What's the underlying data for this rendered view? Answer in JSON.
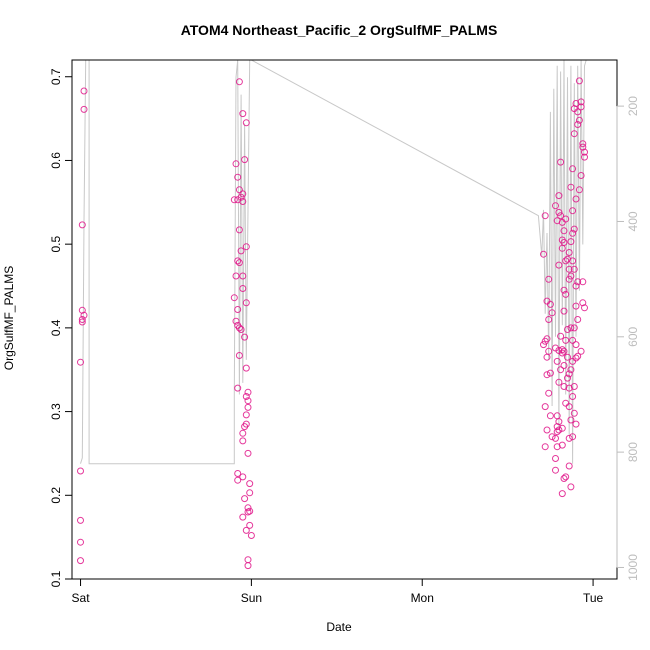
{
  "chart_data": {
    "type": "scatter",
    "title": "ATOM4 Northeast_Pacific_2 OrgSulfMF_PALMS",
    "xlabel": "Date",
    "ylabel": "OrgSulfMF_PALMS",
    "x_ticks": [
      "Sat",
      "Sun",
      "Mon",
      "Tue"
    ],
    "x_range_days": [
      -0.05,
      3.14
    ],
    "y_ticks": [
      0.1,
      0.2,
      0.3,
      0.4,
      0.5,
      0.6,
      0.7
    ],
    "ylim": [
      0.1,
      0.72
    ],
    "y2_ticks": [
      200,
      400,
      600,
      800,
      1000
    ],
    "y2lim": [
      1020,
      120
    ],
    "point_color": "#e0158a",
    "line_color": "#c8c8c8",
    "grid": false,
    "series": [
      {
        "values": [
          [
            0.02,
            0.683
          ],
          [
            0.02,
            0.661
          ],
          [
            0.01,
            0.523
          ],
          [
            0.01,
            0.421
          ],
          [
            0.02,
            0.415
          ],
          [
            0.01,
            0.41
          ],
          [
            0.01,
            0.407
          ],
          [
            0.0,
            0.359
          ],
          [
            0.0,
            0.229
          ],
          [
            0.0,
            0.17
          ],
          [
            0.0,
            0.144
          ],
          [
            0.0,
            0.122
          ],
          [
            0.93,
            0.694
          ],
          [
            0.95,
            0.656
          ],
          [
            0.97,
            0.645
          ],
          [
            0.96,
            0.601
          ],
          [
            0.91,
            0.596
          ],
          [
            0.92,
            0.58
          ],
          [
            0.93,
            0.565
          ],
          [
            0.95,
            0.56
          ],
          [
            0.9,
            0.553
          ],
          [
            0.92,
            0.553
          ],
          [
            0.94,
            0.556
          ],
          [
            0.95,
            0.551
          ],
          [
            0.93,
            0.517
          ],
          [
            0.97,
            0.497
          ],
          [
            0.94,
            0.492
          ],
          [
            0.92,
            0.48
          ],
          [
            0.93,
            0.478
          ],
          [
            0.95,
            0.462
          ],
          [
            0.91,
            0.462
          ],
          [
            0.95,
            0.447
          ],
          [
            0.9,
            0.436
          ],
          [
            0.97,
            0.43
          ],
          [
            0.92,
            0.422
          ],
          [
            0.91,
            0.408
          ],
          [
            0.93,
            0.4
          ],
          [
            0.92,
            0.403
          ],
          [
            0.94,
            0.398
          ],
          [
            0.96,
            0.389
          ],
          [
            0.93,
            0.367
          ],
          [
            0.97,
            0.352
          ],
          [
            0.92,
            0.328
          ],
          [
            0.98,
            0.323
          ],
          [
            0.97,
            0.318
          ],
          [
            0.98,
            0.313
          ],
          [
            0.98,
            0.305
          ],
          [
            0.97,
            0.296
          ],
          [
            0.96,
            0.282
          ],
          [
            0.97,
            0.285
          ],
          [
            0.95,
            0.274
          ],
          [
            0.95,
            0.265
          ],
          [
            0.98,
            0.25
          ],
          [
            0.92,
            0.226
          ],
          [
            0.95,
            0.222
          ],
          [
            0.92,
            0.218
          ],
          [
            0.99,
            0.214
          ],
          [
            0.99,
            0.203
          ],
          [
            0.96,
            0.196
          ],
          [
            0.98,
            0.185
          ],
          [
            0.99,
            0.181
          ],
          [
            0.98,
            0.18
          ],
          [
            0.99,
            0.164
          ],
          [
            0.95,
            0.174
          ],
          [
            0.97,
            0.158
          ],
          [
            1.0,
            0.152
          ],
          [
            0.98,
            0.123
          ],
          [
            0.98,
            0.116
          ],
          [
            2.72,
            0.534
          ],
          [
            2.71,
            0.488
          ],
          [
            2.74,
            0.458
          ],
          [
            2.73,
            0.432
          ],
          [
            2.75,
            0.428
          ],
          [
            2.76,
            0.418
          ],
          [
            2.74,
            0.41
          ],
          [
            2.73,
            0.387
          ],
          [
            2.72,
            0.384
          ],
          [
            2.71,
            0.38
          ],
          [
            2.74,
            0.372
          ],
          [
            2.73,
            0.365
          ],
          [
            2.73,
            0.344
          ],
          [
            2.75,
            0.346
          ],
          [
            2.74,
            0.322
          ],
          [
            2.72,
            0.306
          ],
          [
            2.75,
            0.295
          ],
          [
            2.73,
            0.278
          ],
          [
            2.76,
            0.27
          ],
          [
            2.72,
            0.258
          ],
          [
            2.78,
            0.546
          ],
          [
            2.8,
            0.558
          ],
          [
            2.8,
            0.538
          ],
          [
            2.81,
            0.598
          ],
          [
            2.81,
            0.534
          ],
          [
            2.82,
            0.526
          ],
          [
            2.83,
            0.516
          ],
          [
            2.79,
            0.528
          ],
          [
            2.82,
            0.505
          ],
          [
            2.82,
            0.495
          ],
          [
            2.83,
            0.502
          ],
          [
            2.84,
            0.53
          ],
          [
            2.8,
            0.475
          ],
          [
            2.84,
            0.48
          ],
          [
            2.85,
            0.482
          ],
          [
            2.86,
            0.458
          ],
          [
            2.83,
            0.445
          ],
          [
            2.84,
            0.44
          ],
          [
            2.83,
            0.42
          ],
          [
            2.81,
            0.39
          ],
          [
            2.84,
            0.385
          ],
          [
            2.8,
            0.373
          ],
          [
            2.82,
            0.374
          ],
          [
            2.83,
            0.372
          ],
          [
            2.82,
            0.37
          ],
          [
            2.85,
            0.365
          ],
          [
            2.78,
            0.376
          ],
          [
            2.79,
            0.36
          ],
          [
            2.81,
            0.35
          ],
          [
            2.83,
            0.355
          ],
          [
            2.85,
            0.34
          ],
          [
            2.8,
            0.335
          ],
          [
            2.83,
            0.33
          ],
          [
            2.86,
            0.328
          ],
          [
            2.84,
            0.31
          ],
          [
            2.79,
            0.295
          ],
          [
            2.8,
            0.288
          ],
          [
            2.79,
            0.282
          ],
          [
            2.79,
            0.276
          ],
          [
            2.8,
            0.278
          ],
          [
            2.82,
            0.28
          ],
          [
            2.78,
            0.268
          ],
          [
            2.79,
            0.258
          ],
          [
            2.82,
            0.26
          ],
          [
            2.78,
            0.244
          ],
          [
            2.78,
            0.23
          ],
          [
            2.83,
            0.22
          ],
          [
            2.84,
            0.222
          ],
          [
            2.82,
            0.202
          ],
          [
            2.86,
            0.235
          ],
          [
            2.87,
            0.21
          ],
          [
            2.87,
            0.568
          ],
          [
            2.88,
            0.59
          ],
          [
            2.89,
            0.632
          ],
          [
            2.89,
            0.662
          ],
          [
            2.9,
            0.668
          ],
          [
            2.91,
            0.658
          ],
          [
            2.92,
            0.695
          ],
          [
            2.93,
            0.67
          ],
          [
            2.93,
            0.664
          ],
          [
            2.92,
            0.648
          ],
          [
            2.91,
            0.643
          ],
          [
            2.94,
            0.62
          ],
          [
            2.94,
            0.616
          ],
          [
            2.95,
            0.61
          ],
          [
            2.95,
            0.604
          ],
          [
            2.93,
            0.582
          ],
          [
            2.92,
            0.565
          ],
          [
            2.9,
            0.554
          ],
          [
            2.88,
            0.54
          ],
          [
            2.89,
            0.518
          ],
          [
            2.88,
            0.513
          ],
          [
            2.87,
            0.503
          ],
          [
            2.86,
            0.49
          ],
          [
            2.88,
            0.48
          ],
          [
            2.89,
            0.47
          ],
          [
            2.86,
            0.47
          ],
          [
            2.87,
            0.462
          ],
          [
            2.9,
            0.45
          ],
          [
            2.91,
            0.455
          ],
          [
            2.94,
            0.455
          ],
          [
            2.94,
            0.43
          ],
          [
            2.95,
            0.424
          ],
          [
            2.9,
            0.426
          ],
          [
            2.91,
            0.41
          ],
          [
            2.89,
            0.4
          ],
          [
            2.87,
            0.4
          ],
          [
            2.85,
            0.398
          ],
          [
            2.88,
            0.385
          ],
          [
            2.9,
            0.38
          ],
          [
            2.93,
            0.372
          ],
          [
            2.91,
            0.366
          ],
          [
            2.9,
            0.364
          ],
          [
            2.88,
            0.36
          ],
          [
            2.87,
            0.35
          ],
          [
            2.86,
            0.345
          ],
          [
            2.89,
            0.33
          ],
          [
            2.88,
            0.318
          ],
          [
            2.86,
            0.306
          ],
          [
            2.89,
            0.298
          ],
          [
            2.87,
            0.29
          ],
          [
            2.86,
            0.268
          ],
          [
            2.88,
            0.27
          ],
          [
            2.9,
            0.285
          ]
        ]
      },
      {
        "axis": "right",
        "values": [
          [
            0.0,
            820
          ],
          [
            0.01,
            810
          ],
          [
            0.02,
            400
          ],
          [
            0.03,
            120
          ],
          [
            0.05,
            120
          ],
          [
            0.05,
            820
          ],
          [
            0.9,
            820
          ],
          [
            0.9,
            700
          ],
          [
            0.91,
            150
          ],
          [
            0.92,
            120
          ],
          [
            0.93,
            700
          ],
          [
            0.94,
            180
          ],
          [
            0.95,
            680
          ],
          [
            0.96,
            230
          ],
          [
            0.97,
            640
          ],
          [
            0.98,
            380
          ],
          [
            0.99,
            120
          ],
          [
            1.0,
            120
          ],
          [
            2.68,
            390
          ],
          [
            2.7,
            460
          ],
          [
            2.71,
            380
          ],
          [
            2.72,
            560
          ],
          [
            2.73,
            420
          ],
          [
            2.74,
            640
          ],
          [
            2.75,
            210
          ],
          [
            2.76,
            720
          ],
          [
            2.77,
            170
          ],
          [
            2.78,
            600
          ],
          [
            2.79,
            130
          ],
          [
            2.8,
            760
          ],
          [
            2.81,
            140
          ],
          [
            2.82,
            580
          ],
          [
            2.83,
            120
          ],
          [
            2.84,
            700
          ],
          [
            2.85,
            150
          ],
          [
            2.86,
            770
          ],
          [
            2.87,
            130
          ],
          [
            2.88,
            820
          ],
          [
            2.89,
            160
          ],
          [
            2.9,
            600
          ],
          [
            2.91,
            130
          ],
          [
            2.92,
            520
          ],
          [
            2.93,
            120
          ],
          [
            2.94,
            440
          ],
          [
            2.95,
            130
          ],
          [
            2.96,
            120
          ]
        ]
      }
    ]
  }
}
